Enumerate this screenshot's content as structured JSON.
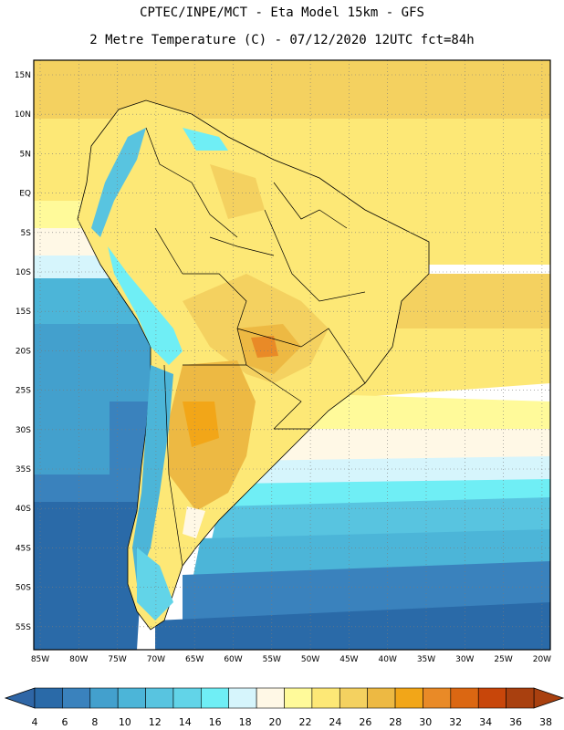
{
  "header": {
    "title_line1": "CPTEC/INPE/MCT -  Eta Model 15km - GFS",
    "title_line2": "2 Metre Temperature (C) - 07/12/2020 12UTC fct=84h"
  },
  "map": {
    "lat_labels": [
      "15N",
      "10N",
      "5N",
      "EQ",
      "5S",
      "10S",
      "15S",
      "20S",
      "25S",
      "30S",
      "35S",
      "40S",
      "45S",
      "50S",
      "55S"
    ],
    "lon_labels": [
      "85W",
      "80W",
      "75W",
      "70W",
      "65W",
      "60W",
      "55W",
      "50W",
      "45W",
      "40W",
      "35W",
      "30W",
      "25W",
      "20W"
    ],
    "gridlines": "dotted",
    "dominant_field": {
      "ocean_north": "24-26",
      "ocean_south": "8-12",
      "interior_max": "32-34"
    }
  },
  "colorbar": {
    "labels": [
      "4",
      "6",
      "8",
      "10",
      "12",
      "14",
      "16",
      "18",
      "20",
      "22",
      "24",
      "26",
      "28",
      "30",
      "32",
      "34",
      "36",
      "38"
    ],
    "colors": [
      "#2a6aa8",
      "#3a82bd",
      "#43a0cd",
      "#4cb5d8",
      "#58c4e0",
      "#62d4e8",
      "#6feef5",
      "#d6f5fc",
      "#fff8e6",
      "#fffa9a",
      "#fde876",
      "#f4d160",
      "#edb943",
      "#f2a618",
      "#e98a27",
      "#db6712",
      "#c8460a",
      "#a9400f"
    ]
  }
}
